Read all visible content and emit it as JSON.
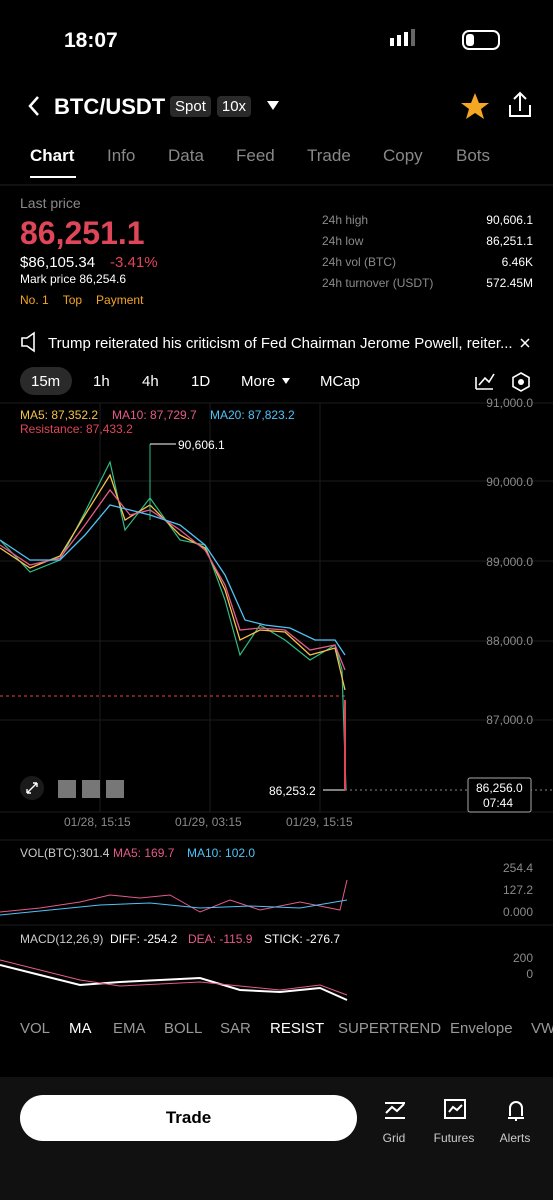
{
  "status": {
    "time": "18:07"
  },
  "header": {
    "pair": "BTC/USDT",
    "badges": [
      "Spot",
      "10x"
    ]
  },
  "tabs": [
    "Chart",
    "Info",
    "Data",
    "Feed",
    "Trade",
    "Copy",
    "Bots"
  ],
  "price": {
    "label": "Last price",
    "last": "86,251.1",
    "usd": "$86,105.34",
    "change": "-3.41%",
    "mark": "Mark price 86,254.6",
    "tags": [
      "No. 1",
      "Top",
      "Payment"
    ]
  },
  "stats": [
    {
      "label": "24h high",
      "value": "90,606.1"
    },
    {
      "label": "24h low",
      "value": "86,251.1"
    },
    {
      "label": "24h vol (BTC)",
      "value": "6.46K"
    },
    {
      "label": "24h turnover (USDT)",
      "value": "572.45M"
    }
  ],
  "news": "Trump reiterated his criticism of Fed Chairman Jerome Powell, reiter...",
  "intervals": [
    "15m",
    "1h",
    "4h",
    "1D",
    "More",
    "MCap"
  ],
  "chart": {
    "ma5": "MA5: 87,352.2",
    "ma10": "MA10: 87,729.7",
    "ma20": "MA20: 87,823.2",
    "resistance": "Resistance: 87,433.2",
    "yticks": [
      "91,000.0",
      "90,000.0",
      "89,000.0",
      "88,000.0",
      "87,000.0"
    ],
    "high": "90,606.1",
    "low": "86,253.2",
    "current": "86,256.0",
    "countdown": "07:44",
    "xticks": [
      "01/28, 15:15",
      "01/29, 03:15",
      "01/29, 15:15"
    ]
  },
  "volume": {
    "label": "VOL(BTC):301.4",
    "ma5": "MA5: 169.7",
    "ma10": "MA10: 102.0",
    "ticks": [
      "254.4",
      "127.2",
      "0.000"
    ]
  },
  "macd": {
    "label": "MACD(12,26,9)",
    "diff": "DIFF: -254.2",
    "dea": "DEA: -115.9",
    "stick": "STICK: -276.7",
    "ticks": [
      "200",
      "0"
    ]
  },
  "indicators": [
    "VOL",
    "MA",
    "EMA",
    "BOLL",
    "SAR",
    "RESIST",
    "SUPERTREND",
    "Envelope",
    "VW"
  ],
  "bottom": {
    "trade": "Trade",
    "nav": [
      "Grid",
      "Futures",
      "Alerts"
    ]
  }
}
